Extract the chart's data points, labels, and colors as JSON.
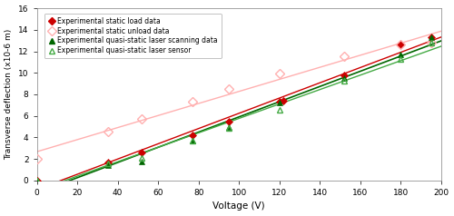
{
  "xlabel": "Voltage (V)",
  "ylabel": "Transverse deflection (x10-6 m)",
  "xlim": [
    0,
    200
  ],
  "ylim": [
    0,
    16
  ],
  "yticks": [
    0,
    2,
    4,
    6,
    8,
    10,
    12,
    14,
    16
  ],
  "xticks": [
    0,
    20,
    40,
    60,
    80,
    100,
    120,
    140,
    160,
    180,
    200
  ],
  "load_x": [
    0,
    35,
    52,
    77,
    95,
    120,
    122,
    152,
    180,
    195
  ],
  "load_y": [
    0,
    1.7,
    2.6,
    4.2,
    5.5,
    7.3,
    7.4,
    9.8,
    12.6,
    13.3
  ],
  "unload_x": [
    0,
    35,
    52,
    77,
    95,
    120,
    152,
    180,
    195
  ],
  "unload_y": [
    2.0,
    4.5,
    5.7,
    7.3,
    8.5,
    9.9,
    11.5,
    12.6,
    12.8
  ],
  "qs_scan_x": [
    0,
    35,
    52,
    77,
    95,
    120,
    152,
    180,
    195
  ],
  "qs_scan_y": [
    0,
    1.4,
    1.8,
    3.7,
    5.0,
    7.2,
    9.5,
    11.7,
    13.3
  ],
  "qs_sensor_x": [
    0,
    35,
    52,
    77,
    95,
    120,
    152,
    180,
    195
  ],
  "qs_sensor_y": [
    0,
    1.6,
    2.1,
    3.7,
    4.9,
    6.6,
    9.3,
    11.3,
    12.8
  ],
  "load_color": "#cc0000",
  "unload_color": "#ffb0b0",
  "qs_scan_color": "#006600",
  "qs_sensor_color": "#44aa44",
  "legend_labels": [
    "Experimental static load data",
    "Experimental static unload data",
    "Experimental quasi-static laser scanning data",
    "Experimental quasi-static laser sensor"
  ]
}
